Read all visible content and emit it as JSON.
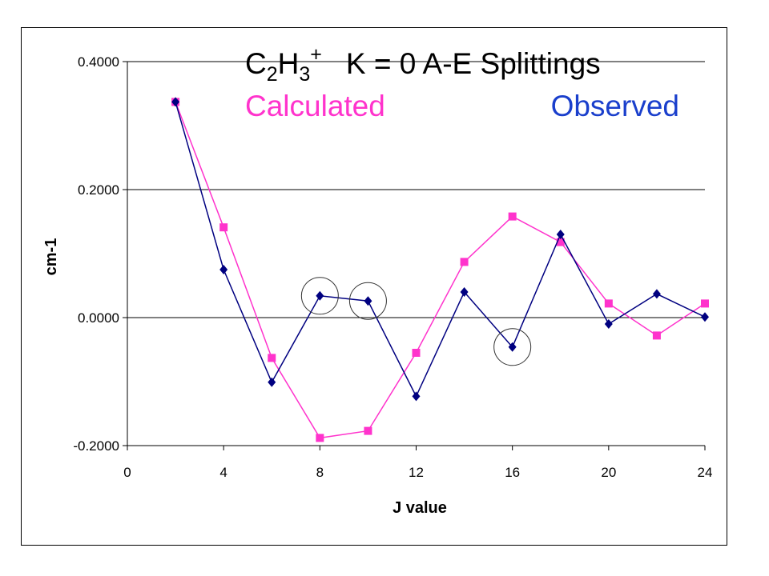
{
  "title": {
    "species_main_c": "C",
    "species_sub_c": "2",
    "species_main_h": "H",
    "species_sub_h": "3",
    "species_charge": "+",
    "heading": "K = 0 A-E Splittings",
    "legend_calculated": "Calculated",
    "legend_observed": "Observed"
  },
  "colors": {
    "calculated": "#ff33cc",
    "observed": "#000080",
    "observed_label": "#1a3fcc",
    "grid": "#000000"
  },
  "chart_data": {
    "type": "scatter",
    "xlabel": "J value",
    "ylabel": "cm-1",
    "xlim": [
      0,
      24
    ],
    "ylim": [
      -0.2,
      0.4
    ],
    "xticks": [
      "0",
      "4",
      "8",
      "12",
      "16",
      "20",
      "24"
    ],
    "yticks": [
      "0.4000",
      "0.2000",
      "0.0000",
      "-0.2000"
    ],
    "ytick_values": [
      0.4,
      0.2,
      0.0,
      -0.2
    ],
    "xtick_values": [
      0,
      4,
      8,
      12,
      16,
      20,
      24
    ],
    "grid": "horizontal",
    "series": [
      {
        "name": "Calculated",
        "marker": "square",
        "x": [
          2,
          4,
          6,
          8,
          10,
          12,
          14,
          16,
          18,
          20,
          22,
          24
        ],
        "y": [
          0.337,
          0.141,
          -0.063,
          -0.188,
          -0.177,
          -0.055,
          0.087,
          0.158,
          0.118,
          0.022,
          -0.028,
          0.022
        ]
      },
      {
        "name": "Observed",
        "marker": "diamond",
        "x": [
          2,
          4,
          6,
          8,
          10,
          12,
          14,
          16,
          18,
          20,
          22,
          24
        ],
        "y": [
          0.337,
          0.075,
          -0.101,
          0.034,
          0.026,
          -0.123,
          0.04,
          -0.046,
          0.13,
          -0.01,
          0.037,
          0.001
        ]
      }
    ],
    "highlighted_points": [
      {
        "series": "Observed",
        "x": 8
      },
      {
        "series": "Observed",
        "x": 10
      },
      {
        "series": "Observed",
        "x": 16
      }
    ]
  }
}
